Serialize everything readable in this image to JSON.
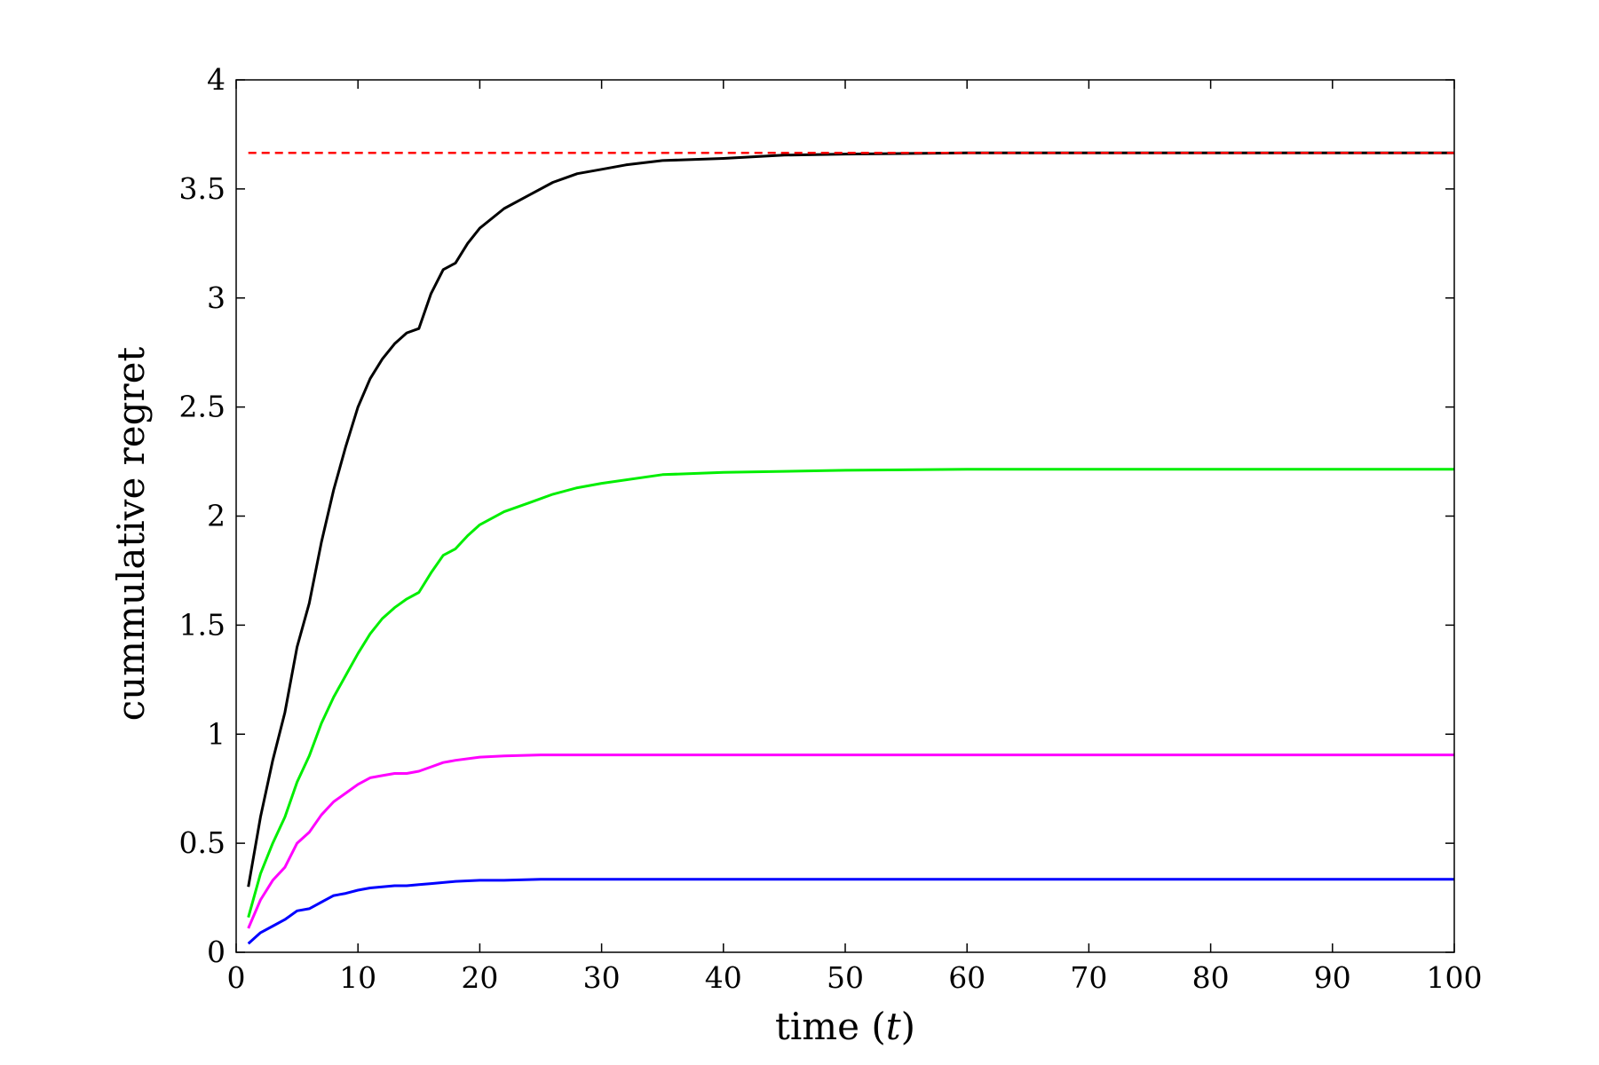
{
  "chart_data": {
    "type": "line",
    "title": "",
    "xlabel": "time (",
    "xlabel_var": "t",
    "xlabel_close": ")",
    "ylabel": "cummulative regret",
    "xlim": [
      0,
      100
    ],
    "ylim": [
      0,
      4
    ],
    "xticks": [
      "0",
      "10",
      "20",
      "30",
      "40",
      "50",
      "60",
      "70",
      "80",
      "90",
      "100"
    ],
    "yticks": [
      "0",
      "0.5",
      "1",
      "1.5",
      "2",
      "2.5",
      "3",
      "3.5",
      "4"
    ],
    "grid": false,
    "legend": "none",
    "series": [
      {
        "color": "#000000",
        "x": [
          1,
          2,
          3,
          4,
          5,
          6,
          7,
          8,
          9,
          10,
          11,
          12,
          13,
          14,
          15,
          16,
          17,
          18,
          19,
          20,
          22,
          24,
          26,
          28,
          30,
          32,
          35,
          40,
          45,
          50,
          60,
          100
        ],
        "y": [
          0.3,
          0.62,
          0.88,
          1.1,
          1.4,
          1.6,
          1.88,
          2.12,
          2.32,
          2.5,
          2.63,
          2.72,
          2.79,
          2.84,
          2.86,
          3.02,
          3.13,
          3.16,
          3.25,
          3.32,
          3.41,
          3.47,
          3.53,
          3.57,
          3.59,
          3.61,
          3.63,
          3.64,
          3.655,
          3.66,
          3.665,
          3.665
        ]
      },
      {
        "color": "#00ee00",
        "x": [
          1,
          2,
          3,
          4,
          5,
          6,
          7,
          8,
          9,
          10,
          11,
          12,
          13,
          14,
          15,
          16,
          17,
          18,
          19,
          20,
          22,
          24,
          26,
          28,
          30,
          35,
          40,
          50,
          60,
          100
        ],
        "y": [
          0.16,
          0.36,
          0.5,
          0.62,
          0.78,
          0.9,
          1.05,
          1.17,
          1.27,
          1.37,
          1.46,
          1.53,
          1.58,
          1.62,
          1.65,
          1.74,
          1.82,
          1.85,
          1.91,
          1.96,
          2.02,
          2.06,
          2.1,
          2.13,
          2.15,
          2.19,
          2.2,
          2.21,
          2.215,
          2.215
        ]
      },
      {
        "color": "#ff00ff",
        "x": [
          1,
          2,
          3,
          4,
          5,
          6,
          7,
          8,
          9,
          10,
          11,
          12,
          13,
          14,
          15,
          16,
          17,
          18,
          20,
          22,
          25,
          100
        ],
        "y": [
          0.11,
          0.24,
          0.33,
          0.39,
          0.5,
          0.55,
          0.63,
          0.69,
          0.73,
          0.77,
          0.8,
          0.81,
          0.82,
          0.82,
          0.83,
          0.85,
          0.87,
          0.88,
          0.895,
          0.9,
          0.905,
          0.905
        ]
      },
      {
        "color": "#0000ff",
        "x": [
          1,
          2,
          3,
          4,
          5,
          6,
          7,
          8,
          9,
          10,
          11,
          12,
          13,
          14,
          15,
          16,
          17,
          18,
          20,
          22,
          25,
          100
        ],
        "y": [
          0.04,
          0.09,
          0.12,
          0.15,
          0.19,
          0.2,
          0.23,
          0.26,
          0.27,
          0.285,
          0.295,
          0.3,
          0.305,
          0.305,
          0.31,
          0.315,
          0.32,
          0.325,
          0.33,
          0.33,
          0.335,
          0.335
        ]
      },
      {
        "color": "#ff0000",
        "dashed": true,
        "x": [
          1,
          100
        ],
        "y": [
          3.665,
          3.665
        ]
      }
    ]
  }
}
